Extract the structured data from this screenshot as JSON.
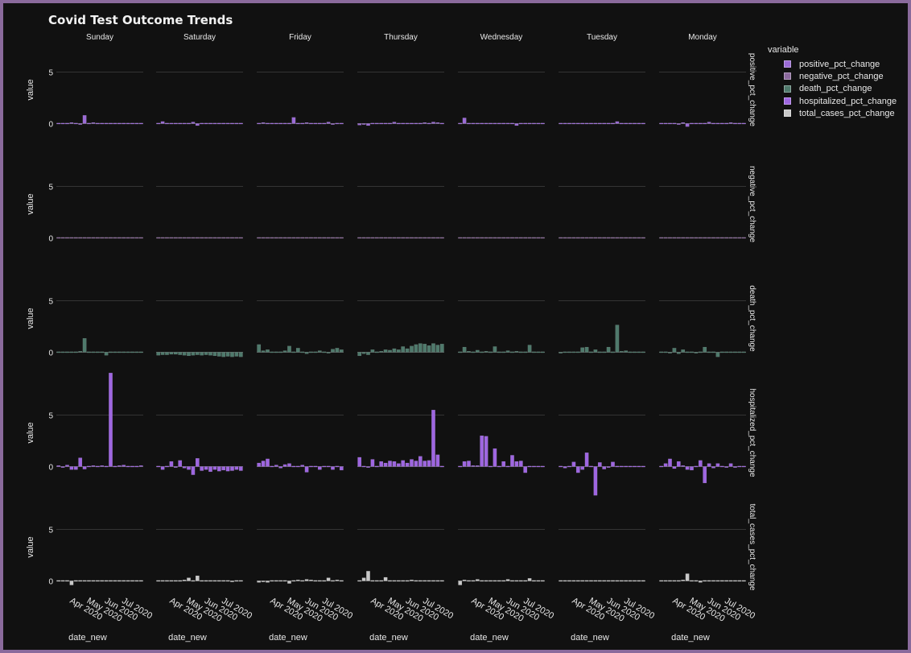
{
  "chart_data": {
    "type": "bar",
    "title": "Covid Test Outcome Trends",
    "facet_columns": [
      "Sunday",
      "Saturday",
      "Friday",
      "Thursday",
      "Wednesday",
      "Tuesday",
      "Monday"
    ],
    "facet_rows": [
      "positive_pct_change",
      "negative_pct_change",
      "death_pct_change",
      "hospitalized_pct_change",
      "total_cases_pct_change"
    ],
    "xlabel": "date_new",
    "ylabel": "value",
    "x_ticks": [
      "Apr 2020",
      "May 2020",
      "Jun 2020",
      "Jul 2020"
    ],
    "y_ticks": [
      0,
      5
    ],
    "xlim": [
      "2020-03-01",
      "2020-07-31"
    ],
    "ylim": [
      -2.0,
      7.0
    ],
    "legend_title": "variable",
    "legend_placement": "top-right",
    "grid": true,
    "series": [
      {
        "name": "positive_pct_change",
        "color": "#9b6bd6",
        "values": {
          "Sunday": [
            0.05,
            0.0,
            -0.05,
            0.1,
            0.05,
            -0.1,
            0.8,
            -0.05,
            0.1,
            -0.05,
            0.0,
            0.05,
            0.0,
            -0.05,
            0.05,
            0.0,
            0.0,
            -0.05,
            0.0,
            0.05
          ],
          "Saturday": [
            0.05,
            0.2,
            -0.05,
            0.0,
            0.05,
            0.0,
            0.05,
            -0.05,
            0.15,
            -0.2,
            0.05,
            0.0,
            -0.05,
            0.05,
            -0.05,
            0.0,
            0.05,
            -0.05,
            0.0,
            0.0
          ],
          "Friday": [
            0.05,
            0.1,
            -0.05,
            0.0,
            0.05,
            0.0,
            0.05,
            -0.05,
            0.6,
            0.05,
            0.0,
            0.1,
            -0.05,
            0.05,
            0.0,
            0.05,
            0.15,
            -0.1,
            0.05,
            0.0
          ],
          "Thursday": [
            -0.15,
            -0.1,
            -0.2,
            0.05,
            0.0,
            0.05,
            -0.05,
            0.0,
            0.15,
            0.0,
            0.05,
            -0.05,
            0.0,
            0.05,
            0.0,
            0.1,
            -0.05,
            0.15,
            0.1,
            0.0
          ],
          "Wednesday": [
            0.05,
            0.55,
            0.05,
            0.0,
            0.05,
            -0.05,
            0.0,
            0.05,
            0.05,
            -0.05,
            0.0,
            0.05,
            -0.05,
            -0.2,
            0.05,
            0.0,
            -0.05,
            0.0,
            -0.05,
            0.0
          ],
          "Tuesday": [
            0.05,
            0.0,
            0.05,
            -0.05,
            0.05,
            0.05,
            0.0,
            0.05,
            0.05,
            0.0,
            0.05,
            -0.05,
            0.05,
            0.2,
            0.0,
            -0.05,
            0.05,
            0.0,
            0.05,
            0.0
          ],
          "Monday": [
            0.05,
            0.0,
            0.05,
            0.0,
            -0.1,
            0.1,
            -0.3,
            0.05,
            -0.05,
            0.0,
            0.05,
            0.15,
            0.0,
            0.05,
            0.0,
            0.05,
            0.1,
            0.0,
            0.05,
            0.0
          ]
        }
      },
      {
        "name": "negative_pct_change",
        "color": "#8c6a9e",
        "values": {
          "Sunday": [
            0.02,
            0.01,
            0.02,
            0.01,
            0.0,
            0.02,
            0.01,
            0.01,
            0.02,
            0.01,
            0.0,
            0.01,
            0.02,
            0.01,
            0.0,
            0.01,
            0.02,
            0.01,
            0.01,
            0.0
          ],
          "Saturday": [
            0.01,
            0.02,
            0.01,
            0.0,
            0.01,
            0.02,
            0.01,
            0.01,
            0.0,
            0.02,
            0.01,
            0.01,
            0.02,
            0.0,
            0.01,
            0.01,
            0.02,
            0.01,
            0.0,
            0.01
          ],
          "Friday": [
            0.02,
            0.01,
            0.0,
            0.01,
            0.02,
            0.01,
            0.01,
            0.0,
            0.02,
            0.01,
            0.01,
            0.02,
            0.0,
            0.01,
            0.02,
            0.01,
            0.0,
            0.01,
            0.02,
            0.01
          ],
          "Thursday": [
            0.01,
            0.02,
            0.01,
            0.01,
            0.0,
            0.02,
            0.01,
            0.01,
            0.02,
            0.0,
            0.01,
            0.01,
            0.02,
            0.01,
            0.0,
            0.01,
            0.02,
            0.01,
            0.01,
            0.0
          ],
          "Wednesday": [
            0.02,
            0.01,
            0.01,
            0.0,
            0.02,
            0.01,
            0.01,
            0.02,
            0.0,
            0.01,
            0.01,
            0.02,
            0.01,
            0.0,
            0.01,
            0.02,
            0.01,
            0.01,
            0.0,
            0.02
          ],
          "Tuesday": [
            0.01,
            0.02,
            0.0,
            0.01,
            0.01,
            0.02,
            0.01,
            0.0,
            0.01,
            0.02,
            0.01,
            0.01,
            0.0,
            0.02,
            0.01,
            0.01,
            0.02,
            0.0,
            0.01,
            0.01
          ],
          "Monday": [
            0.02,
            0.01,
            0.01,
            0.02,
            0.0,
            0.01,
            0.01,
            0.02,
            0.01,
            0.0,
            0.02,
            0.01,
            0.01,
            0.0,
            0.02,
            0.01,
            0.01,
            0.02,
            0.0,
            0.01
          ]
        }
      },
      {
        "name": "death_pct_change",
        "color": "#4f7a6c",
        "values": {
          "Sunday": [
            0.05,
            -0.05,
            0.05,
            0.0,
            -0.05,
            0.1,
            1.35,
            0.05,
            0.0,
            -0.05,
            0.0,
            -0.3,
            0.05,
            0.0,
            -0.05,
            0.05,
            0.0,
            0.05,
            -0.05,
            0.0
          ],
          "Saturday": [
            -0.3,
            -0.25,
            -0.25,
            -0.2,
            -0.2,
            -0.25,
            -0.3,
            -0.35,
            -0.3,
            -0.25,
            -0.3,
            -0.25,
            -0.3,
            -0.35,
            -0.4,
            -0.45,
            -0.4,
            -0.45,
            -0.4,
            -0.45
          ],
          "Friday": [
            0.75,
            0.15,
            0.25,
            0.0,
            0.05,
            0.05,
            0.15,
            0.6,
            0.05,
            0.4,
            0.0,
            -0.15,
            0.05,
            0.0,
            0.15,
            0.0,
            -0.1,
            0.3,
            0.4,
            0.25
          ],
          "Thursday": [
            -0.35,
            -0.15,
            -0.25,
            0.25,
            0.05,
            0.1,
            0.25,
            0.2,
            0.35,
            0.25,
            0.55,
            0.35,
            0.6,
            0.75,
            0.85,
            0.8,
            0.65,
            0.85,
            0.7,
            0.8
          ],
          "Wednesday": [
            0.05,
            0.5,
            0.1,
            0.05,
            0.2,
            0.05,
            0.1,
            0.0,
            0.55,
            0.05,
            0.0,
            0.15,
            0.05,
            0.1,
            0.05,
            0.0,
            0.7,
            0.05,
            0.0,
            0.0
          ],
          "Tuesday": [
            -0.1,
            -0.05,
            0.05,
            0.0,
            0.05,
            0.45,
            0.5,
            0.05,
            0.25,
            0.05,
            0.0,
            0.5,
            0.0,
            2.65,
            0.1,
            0.15,
            0.05,
            0.0,
            0.05,
            0.0
          ],
          "Monday": [
            0.05,
            0.0,
            -0.1,
            0.4,
            -0.15,
            0.25,
            0.05,
            0.0,
            -0.1,
            0.05,
            0.5,
            0.0,
            0.05,
            -0.45,
            0.0,
            0.05,
            0.0,
            0.05,
            0.0,
            0.05
          ]
        }
      },
      {
        "name": "hospitalized_pct_change",
        "color": "#9e66e0",
        "values": {
          "Sunday": [
            0.1,
            -0.1,
            0.15,
            -0.3,
            -0.3,
            0.85,
            -0.25,
            0.05,
            0.1,
            -0.05,
            0.1,
            0.0,
            9.1,
            0.05,
            0.1,
            0.15,
            0.05,
            0.05,
            0.0,
            0.1
          ],
          "Saturday": [
            0.05,
            -0.3,
            0.05,
            0.5,
            -0.1,
            0.6,
            -0.15,
            -0.3,
            -0.8,
            0.8,
            -0.4,
            -0.3,
            -0.5,
            -0.3,
            -0.45,
            -0.35,
            -0.45,
            -0.4,
            -0.3,
            -0.4
          ],
          "Friday": [
            0.35,
            0.55,
            0.75,
            -0.05,
            0.15,
            -0.15,
            0.2,
            0.3,
            0.0,
            -0.05,
            0.15,
            -0.55,
            0.05,
            0.0,
            -0.3,
            0.05,
            0.0,
            -0.3,
            0.05,
            -0.35
          ],
          "Thursday": [
            0.9,
            0.05,
            -0.1,
            0.7,
            0.0,
            0.5,
            0.35,
            0.55,
            0.5,
            0.3,
            0.6,
            0.35,
            0.7,
            0.55,
            1.0,
            0.55,
            0.6,
            5.5,
            1.15,
            0.05
          ],
          "Wednesday": [
            0.05,
            0.5,
            0.55,
            0.1,
            0.1,
            3.0,
            2.95,
            -0.05,
            1.75,
            0.05,
            0.5,
            0.05,
            1.1,
            0.5,
            0.55,
            -0.6,
            0.05,
            0.05,
            0.0,
            0.05
          ],
          "Tuesday": [
            0.05,
            -0.15,
            -0.05,
            0.45,
            -0.6,
            -0.3,
            1.35,
            0.05,
            -2.8,
            0.4,
            -0.25,
            -0.1,
            0.45,
            0.05,
            -0.05,
            0.05,
            0.0,
            0.05,
            -0.05,
            0.0
          ],
          "Monday": [
            0.05,
            0.3,
            0.75,
            -0.2,
            0.5,
            0.1,
            -0.3,
            -0.35,
            -0.05,
            0.6,
            -1.6,
            0.3,
            -0.15,
            0.3,
            0.05,
            -0.1,
            0.3,
            -0.1,
            0.05,
            0.0
          ]
        }
      },
      {
        "name": "total_cases_pct_change",
        "color": "#c8c8c8",
        "values": {
          "Sunday": [
            0.05,
            0.0,
            -0.05,
            -0.4,
            0.05,
            0.05,
            0.0,
            0.05,
            -0.05,
            0.0,
            0.05,
            0.0,
            -0.05,
            0.05,
            0.0,
            0.0,
            0.05,
            -0.05,
            0.0,
            0.0
          ],
          "Saturday": [
            -0.05,
            0.0,
            0.05,
            -0.05,
            0.05,
            0.0,
            0.1,
            0.3,
            0.05,
            0.5,
            -0.05,
            0.0,
            0.05,
            0.0,
            -0.05,
            0.0,
            0.05,
            -0.1,
            0.0,
            0.0
          ],
          "Friday": [
            -0.15,
            -0.1,
            -0.15,
            0.0,
            0.05,
            0.0,
            0.05,
            -0.25,
            0.05,
            0.1,
            0.05,
            0.15,
            0.1,
            0.05,
            0.0,
            0.05,
            0.3,
            0.05,
            0.1,
            0.0
          ],
          "Thursday": [
            0.05,
            0.3,
            0.95,
            0.0,
            0.05,
            0.0,
            0.35,
            0.05,
            0.0,
            0.05,
            0.0,
            0.05,
            0.1,
            0.05,
            0.0,
            0.05,
            0.0,
            -0.05,
            0.05,
            0.0
          ],
          "Wednesday": [
            -0.4,
            0.1,
            0.05,
            0.0,
            0.15,
            0.05,
            0.0,
            0.05,
            0.05,
            0.0,
            0.05,
            0.15,
            0.05,
            0.0,
            0.05,
            0.0,
            0.25,
            0.05,
            0.0,
            0.05
          ],
          "Tuesday": [
            0.05,
            0.0,
            -0.05,
            0.05,
            0.0,
            0.05,
            0.05,
            0.0,
            -0.05,
            0.05,
            0.0,
            0.05,
            0.0,
            0.05,
            0.0,
            0.05,
            0.0,
            0.05,
            0.0,
            0.0
          ],
          "Monday": [
            0.05,
            0.0,
            0.05,
            -0.05,
            0.0,
            0.1,
            0.7,
            0.0,
            0.05,
            -0.15,
            0.0,
            0.05,
            0.0,
            -0.05,
            0.05,
            0.0,
            -0.05,
            0.0,
            0.05,
            0.0
          ]
        }
      }
    ]
  }
}
